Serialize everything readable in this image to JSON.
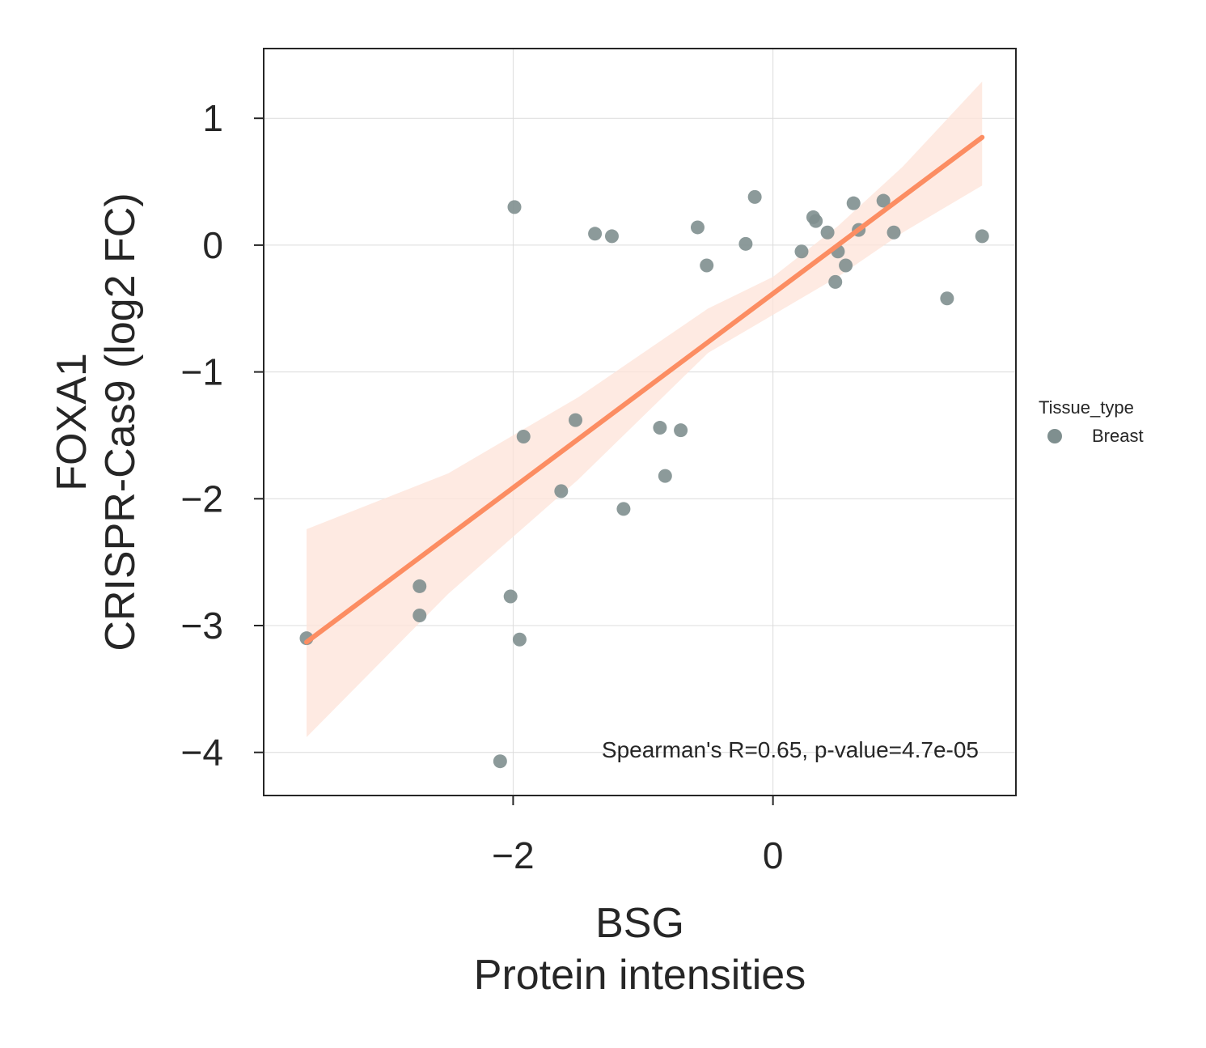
{
  "chart_data": {
    "type": "scatter",
    "xlabel": [
      "BSG",
      "Protein intensities"
    ],
    "ylabel": [
      "FOXA1",
      "CRISPR-Cas9 (log2 FC)"
    ],
    "xlim": [
      -3.92,
      1.87
    ],
    "ylim": [
      -4.34,
      1.55
    ],
    "x_ticks": [
      {
        "value": -2,
        "label": "−2"
      },
      {
        "value": 0,
        "label": "0"
      }
    ],
    "y_ticks": [
      {
        "value": 1,
        "label": "1"
      },
      {
        "value": 0,
        "label": "0"
      },
      {
        "value": -1,
        "label": "−1"
      },
      {
        "value": -2,
        "label": "−2"
      },
      {
        "value": -3,
        "label": "−3"
      },
      {
        "value": -4,
        "label": "−4"
      }
    ],
    "grid": true,
    "series": [
      {
        "name": "Breast",
        "color": "#7f8f8f",
        "points": [
          {
            "x": -3.59,
            "y": -3.1
          },
          {
            "x": -2.72,
            "y": -2.69
          },
          {
            "x": -2.72,
            "y": -2.92
          },
          {
            "x": -2.1,
            "y": -4.07
          },
          {
            "x": -2.02,
            "y": -2.77
          },
          {
            "x": -1.99,
            "y": 0.3
          },
          {
            "x": -1.95,
            "y": -3.11
          },
          {
            "x": -1.92,
            "y": -1.51
          },
          {
            "x": -1.63,
            "y": -1.94
          },
          {
            "x": -1.52,
            "y": -1.38
          },
          {
            "x": -1.37,
            "y": 0.09
          },
          {
            "x": -1.24,
            "y": 0.07
          },
          {
            "x": -1.15,
            "y": -2.08
          },
          {
            "x": -0.87,
            "y": -1.44
          },
          {
            "x": -0.83,
            "y": -1.82
          },
          {
            "x": -0.71,
            "y": -1.46
          },
          {
            "x": -0.58,
            "y": 0.14
          },
          {
            "x": -0.51,
            "y": -0.16
          },
          {
            "x": -0.21,
            "y": 0.01
          },
          {
            "x": -0.14,
            "y": 0.38
          },
          {
            "x": 0.22,
            "y": -0.05
          },
          {
            "x": 0.31,
            "y": 0.22
          },
          {
            "x": 0.33,
            "y": 0.19
          },
          {
            "x": 0.42,
            "y": 0.1
          },
          {
            "x": 0.48,
            "y": -0.29
          },
          {
            "x": 0.5,
            "y": -0.05
          },
          {
            "x": 0.56,
            "y": -0.16
          },
          {
            "x": 0.62,
            "y": 0.33
          },
          {
            "x": 0.66,
            "y": 0.12
          },
          {
            "x": 0.85,
            "y": 0.35
          },
          {
            "x": 0.93,
            "y": 0.1
          },
          {
            "x": 1.34,
            "y": -0.42
          },
          {
            "x": 1.61,
            "y": 0.07
          }
        ]
      }
    ],
    "regression": {
      "color": "#fc8d62",
      "band_color": "#fde3d8",
      "line": [
        {
          "x": -3.59,
          "y": -3.13
        },
        {
          "x": 1.61,
          "y": 0.85
        }
      ],
      "band": [
        {
          "x": -3.59,
          "lower": -3.88,
          "upper": -2.24
        },
        {
          "x": -2.5,
          "lower": -2.75,
          "upper": -1.8
        },
        {
          "x": -1.5,
          "lower": -1.85,
          "upper": -1.2
        },
        {
          "x": -0.5,
          "lower": -0.85,
          "upper": -0.5
        },
        {
          "x": 0.0,
          "lower": -0.55,
          "upper": -0.25
        },
        {
          "x": 0.5,
          "lower": -0.25,
          "upper": 0.15
        },
        {
          "x": 1.0,
          "lower": 0.1,
          "upper": 0.62
        },
        {
          "x": 1.61,
          "lower": 0.47,
          "upper": 1.29
        }
      ]
    },
    "annotation": "Spearman's R=0.65, p-value=4.7e-05",
    "legend": {
      "title": "Tissue_type",
      "placement": "right",
      "entries": [
        {
          "label": "Breast",
          "color": "#7f8f8f"
        }
      ]
    }
  }
}
